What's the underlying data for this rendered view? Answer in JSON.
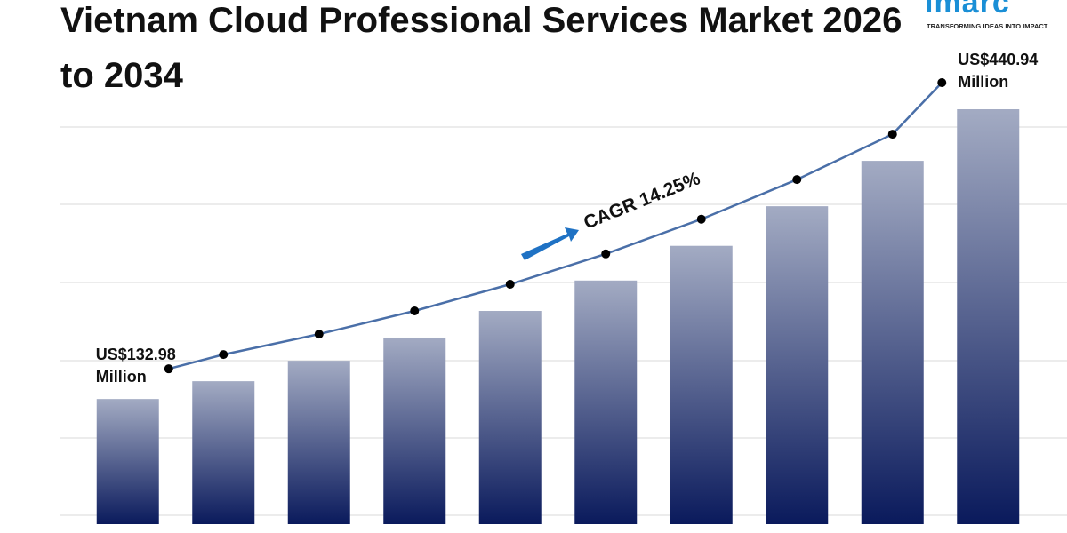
{
  "chart_data": {
    "type": "bar",
    "title": "Vietnam Cloud Professional Services Market 2026 to 2034",
    "categories": [
      null,
      null,
      null,
      null,
      null,
      null,
      null,
      null,
      null,
      null
    ],
    "values": [
      132.98,
      151.9,
      173.6,
      198.3,
      226.6,
      258.9,
      295.8,
      337.9,
      386.1,
      440.94
    ],
    "value_labels": [
      "US$132.98 Million",
      null,
      null,
      null,
      null,
      null,
      null,
      null,
      null,
      "US$440.94 Million"
    ],
    "annotation": "CAGR 14.25%",
    "line_color": "#4a6fa8",
    "bar_color_top": "#a3abc3",
    "bar_color_bottom": "#0a1a5c"
  },
  "logo": {
    "name": "imarc",
    "tagline": "TRANSFORMING IDEAS INTO IMPACT"
  }
}
